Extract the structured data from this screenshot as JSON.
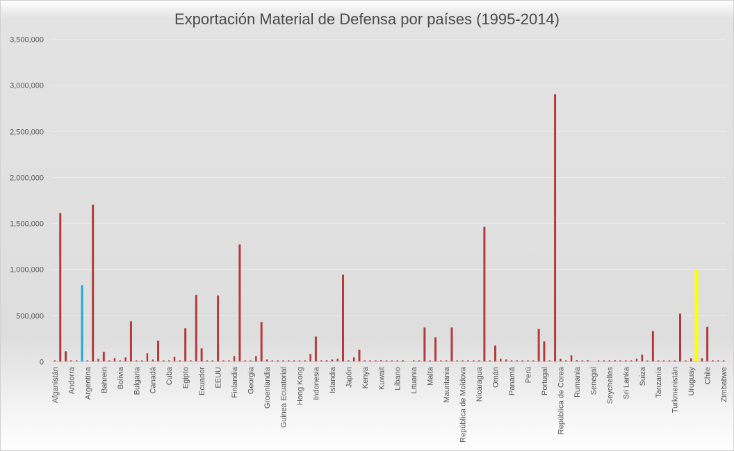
{
  "chart_data": {
    "type": "bar",
    "title": "Exportación Material de Defensa por países (1995-2014)",
    "xlabel": "",
    "ylabel": "",
    "ylim": [
      0,
      3500000
    ],
    "yticks": [
      0,
      500000,
      1000000,
      1500000,
      2000000,
      2500000,
      3000000,
      3500000
    ],
    "ytick_labels": [
      "0",
      "500,000",
      "1,000,000",
      "1,500,000",
      "2,000,000",
      "2,500,000",
      "3,000,000",
      "3,500,000"
    ],
    "grid": true,
    "label_every": 3,
    "tick_labels": [
      "Afganistán",
      "Andorra",
      "Argentina",
      "Bahrein",
      "Bolivia",
      "Bulgaria",
      "Canadá",
      "Cuba",
      "Egipto",
      "Ecuador",
      "EEUU",
      "Finlandia",
      "Georgia",
      "Groenlandia",
      "Guinea Ecuatorial",
      "Hong Kong",
      "Indonesia",
      "Islandia",
      "Japón",
      "Kenya",
      "Kuwait",
      "Líbano",
      "Lituania",
      "Malta",
      "Mauritania",
      "República de Moldova",
      "Nicaragua",
      "Omán",
      "Panamá",
      "Perú",
      "Portugal",
      "República de Corea",
      "Rumania",
      "Senegal",
      "Seychelles",
      "Sri Lanka",
      "Suiza",
      "Tanzanía",
      "Turkmenistán",
      "Uruguay",
      "Chile",
      "Zimbabwe"
    ],
    "values": [
      3000,
      1610000,
      110000,
      3000,
      3000,
      827000,
      3000,
      1700000,
      28000,
      103000,
      3000,
      35000,
      3000,
      43000,
      435000,
      3000,
      3000,
      88000,
      20000,
      224000,
      3000,
      3000,
      50000,
      3000,
      359000,
      3000,
      721000,
      141000,
      3000,
      3000,
      714000,
      3000,
      3000,
      58000,
      1270000,
      3000,
      3000,
      58000,
      427000,
      20000,
      3000,
      3000,
      3000,
      3000,
      3000,
      3000,
      3000,
      80000,
      269000,
      3000,
      13000,
      20000,
      28000,
      940000,
      3000,
      43000,
      126000,
      3000,
      3000,
      3000,
      13000,
      3000,
      3000,
      3000,
      13000,
      0,
      3000,
      3000,
      367000,
      3000,
      261000,
      3000,
      3000,
      367000,
      3000,
      3000,
      3000,
      3000,
      3000,
      1460000,
      3000,
      171000,
      28000,
      20000,
      3000,
      3000,
      3000,
      3000,
      3000,
      352000,
      216000,
      3000,
      2900000,
      28000,
      3000,
      65000,
      13000,
      3000,
      13000,
      0,
      3000,
      3000,
      3000,
      13000,
      3000,
      3000,
      3000,
      28000,
      73000,
      3000,
      329000,
      3000,
      3000,
      3000,
      3000,
      518000,
      3000,
      35000,
      1003000,
      35000,
      374000,
      3000,
      3000,
      3000
    ],
    "colors": {
      "default": "#b23b3b",
      "highlight_blue": "#1ea8e0",
      "highlight_yellow": "#ffff00"
    },
    "highlights": {
      "5": "highlight_blue",
      "118": "highlight_yellow"
    }
  }
}
